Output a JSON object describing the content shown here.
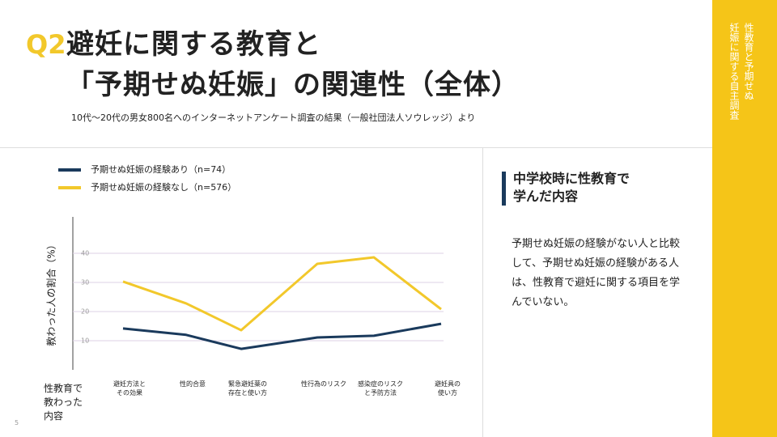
{
  "header": {
    "badge": "Q2",
    "title": "避妊に関する教育と\n「予期せぬ妊娠」の関連性（全体）",
    "subtitle": "10代～20代の男女800名へのインターネットアンケート調査の結果（一般社団法人ソウレッジ）より"
  },
  "sidebar": {
    "text": "性教育と予期せぬ\n妊娠に関する自主調査"
  },
  "panel": {
    "heading": "中学校時に性教育で\n学んだ内容",
    "body": "予期せぬ妊娠の経験がない人と比較して、予期せぬ妊娠の経験がある人は、性教育で避妊に関する項目を学んでいない。"
  },
  "page_number": "5",
  "chart_data": {
    "type": "line",
    "y_label": "教わった人の割合（%）",
    "x_label": "性教育で\n教わった\n内容",
    "categories": [
      "避妊方法と\nその効果",
      "性的合意",
      "緊急避妊薬の\n存在と使い方",
      "性行為のリスク",
      "感染症のリスク\nと予防方法",
      "避妊具の\n使い方"
    ],
    "series": [
      {
        "name": "予期せぬ妊娠の経験あり（n=74）",
        "color": "#1a3a5c",
        "values": [
          14.2,
          12.0,
          7.2,
          11.1,
          11.7,
          15.8
        ]
      },
      {
        "name": "予期せぬ妊娠の経験なし（n=576）",
        "color": "#f2c82b",
        "values": [
          30.3,
          22.8,
          13.6,
          36.4,
          38.6,
          20.8
        ]
      }
    ],
    "ylim": [
      0,
      52.5
    ],
    "yticks": [
      10,
      20,
      30,
      40
    ],
    "grid": true
  }
}
